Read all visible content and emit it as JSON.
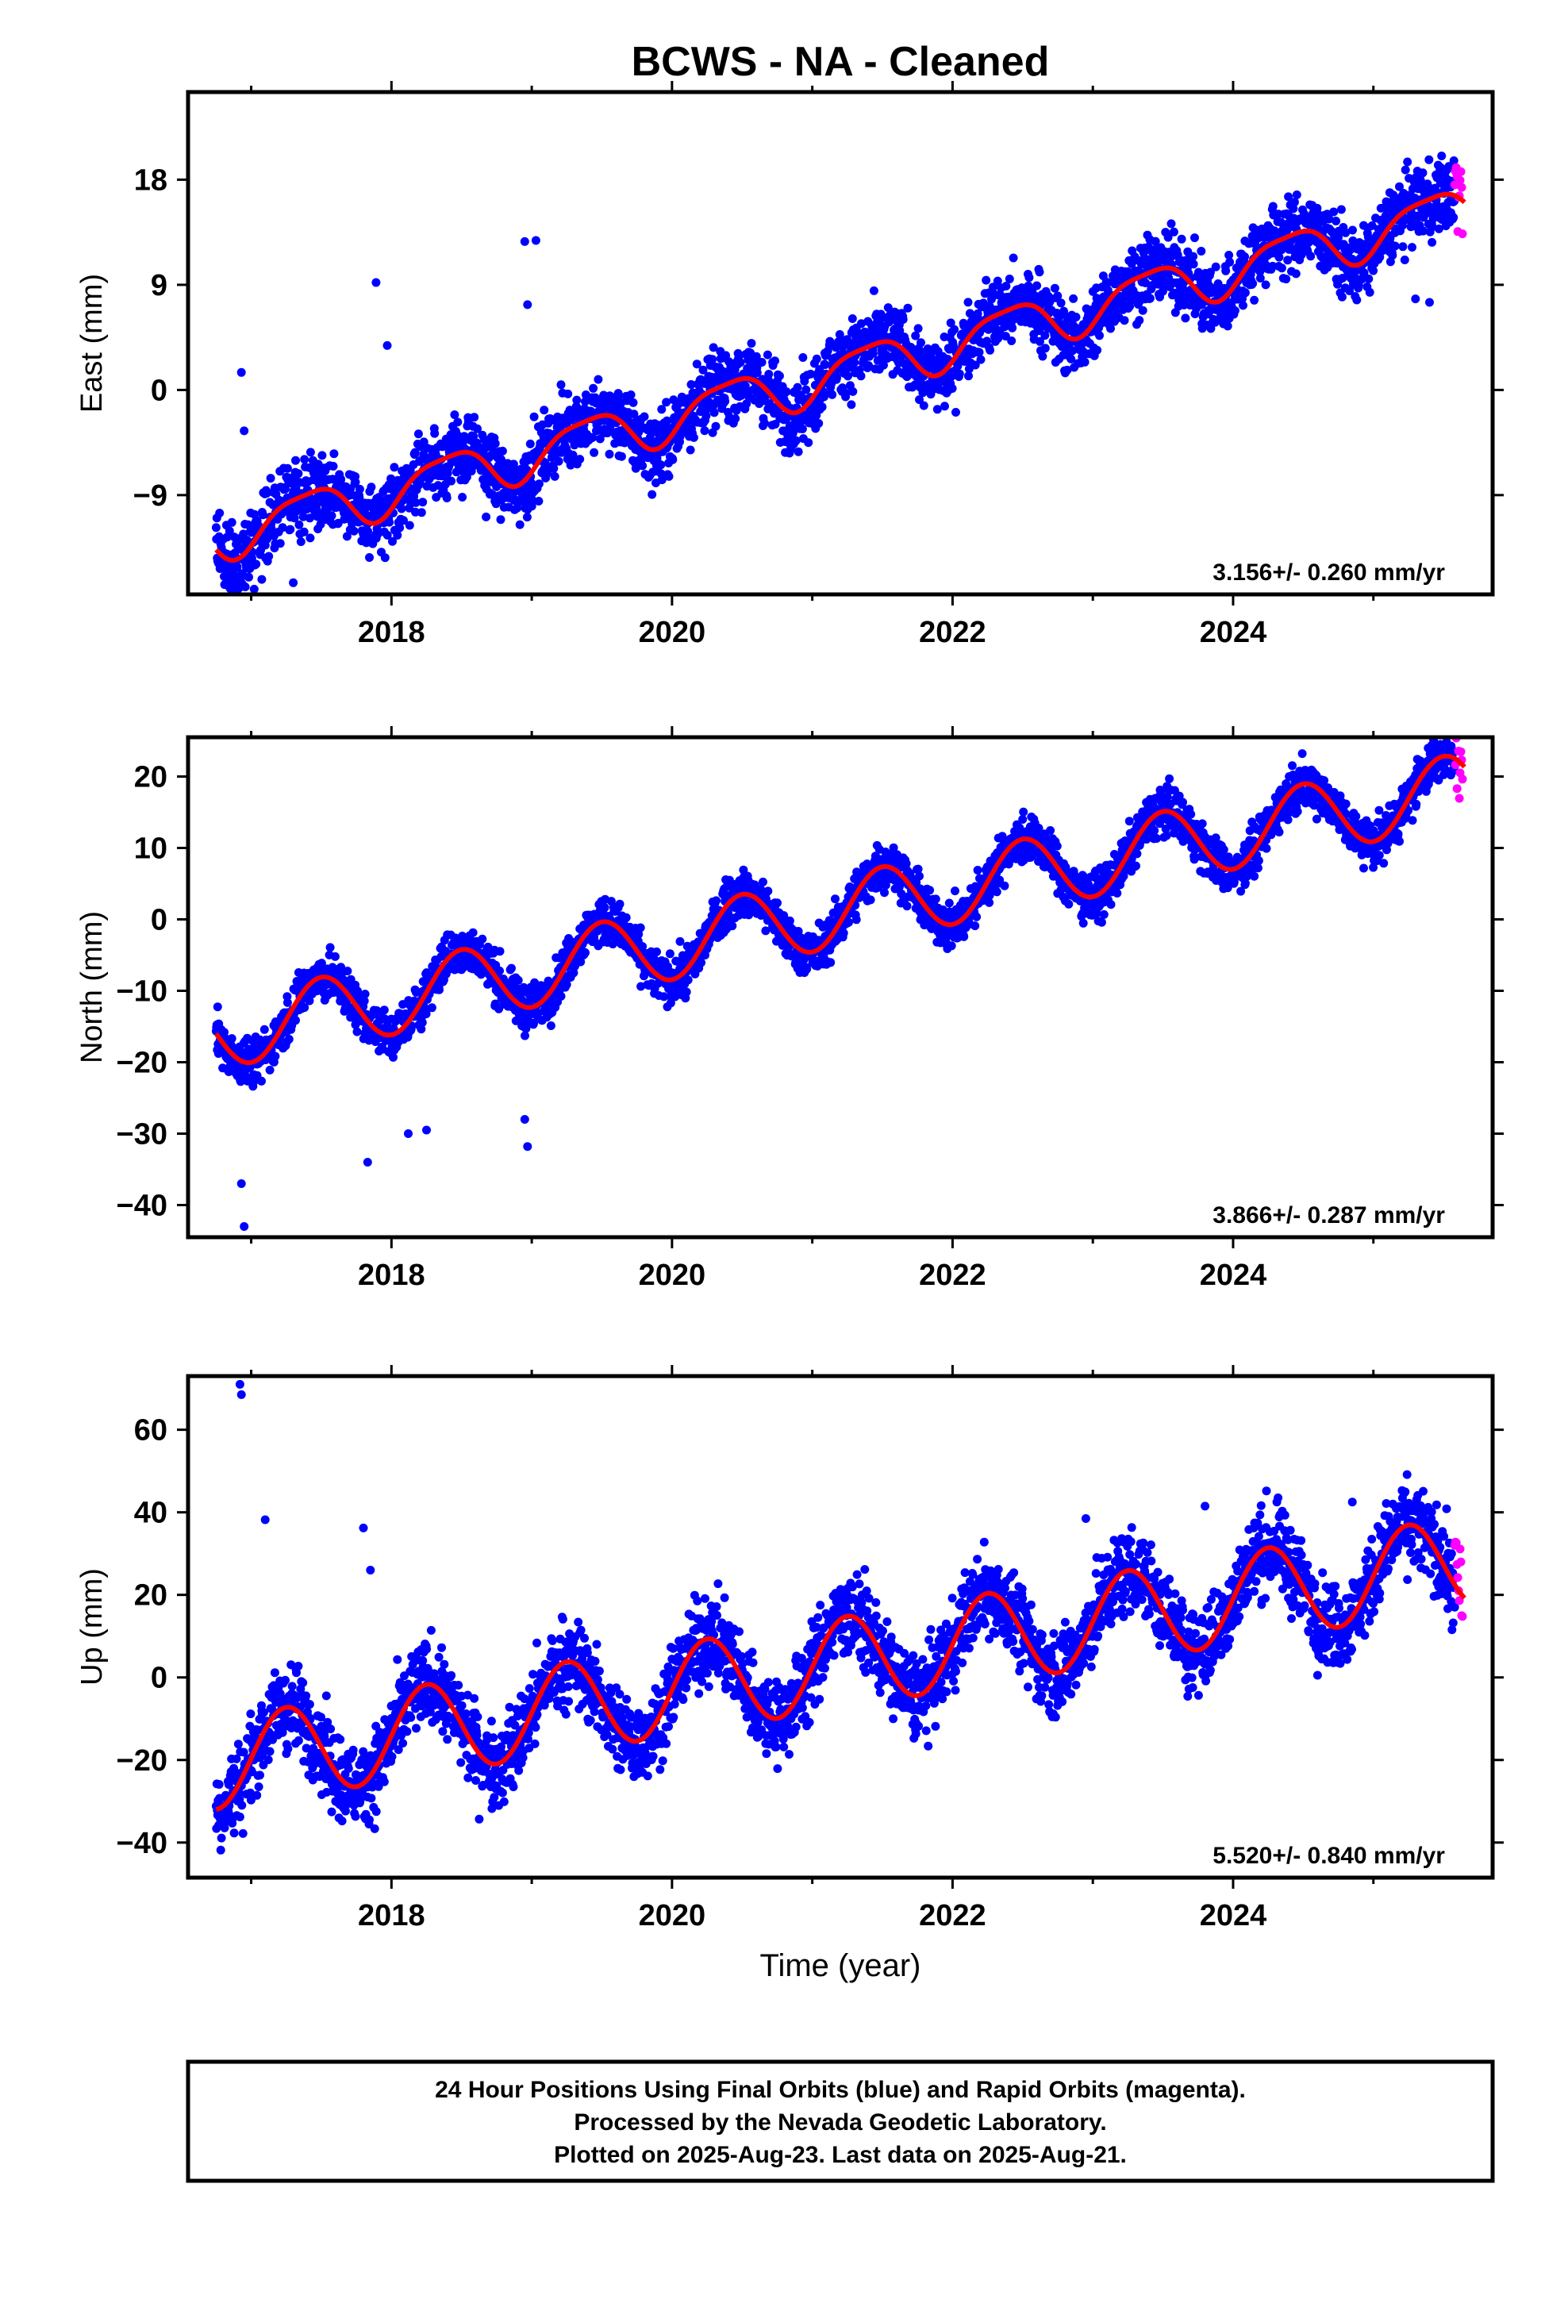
{
  "title": "BCWS  - NA - Cleaned",
  "xlabel": "Time (year)",
  "footer": [
    "24 Hour Positions Using Final Orbits (blue) and Rapid Orbits (magenta).",
    "Processed by the Nevada Geodetic Laboratory.",
    "Plotted on 2025-Aug-23. Last data on 2025-Aug-21."
  ],
  "colors": {
    "final": "#0000ff",
    "rapid": "#ff00ff",
    "model": "#ff0000",
    "axis": "#000000"
  },
  "chart_data": [
    {
      "type": "scatter",
      "ylabel": "East (mm)",
      "rate_text": "3.156+/- 0.260 mm/yr",
      "xlim": [
        2016.55,
        2025.85
      ],
      "ylim": [
        -17.5,
        25.5
      ],
      "xticks": [
        2018,
        2020,
        2022,
        2024
      ],
      "yticks": [
        -9,
        0,
        9,
        18
      ],
      "grid": false,
      "model": {
        "t0": 2016.75,
        "x_end": 2025.65,
        "offset": -12.5,
        "rate": 3.156,
        "annual_amp": 2.0,
        "annual_phase": 0.15,
        "semiannual_amp": 0.5,
        "semiannual_phase": 0.0
      },
      "final_range": [
        2016.75,
        2025.58
      ],
      "rapid_range": [
        2025.58,
        2025.64
      ],
      "scatter_sd": 1.5,
      "outliers": [
        [
          2016.93,
          1.5
        ],
        [
          2016.95,
          -3.5
        ],
        [
          2017.89,
          9.2
        ],
        [
          2017.97,
          3.8
        ],
        [
          2018.95,
          12.7
        ],
        [
          2019.03,
          12.8
        ],
        [
          2018.97,
          7.3
        ],
        [
          2017.3,
          -16.5
        ],
        [
          2025.3,
          7.8
        ],
        [
          2025.4,
          7.5
        ]
      ]
    },
    {
      "type": "scatter",
      "ylabel": "North (mm)",
      "rate_text": "3.866+/- 0.287 mm/yr",
      "xlim": [
        2016.55,
        2025.85
      ],
      "ylim": [
        -44.5,
        25.5
      ],
      "xticks": [
        2018,
        2020,
        2022,
        2024
      ],
      "yticks": [
        -40,
        -30,
        -20,
        -10,
        0,
        10,
        20
      ],
      "grid": false,
      "model": {
        "t0": 2016.75,
        "x_end": 2025.65,
        "offset": -16.0,
        "rate": 3.866,
        "annual_amp": 5.0,
        "annual_phase": 0.25,
        "semiannual_amp": 0.0,
        "semiannual_phase": 0.0
      },
      "final_range": [
        2016.75,
        2025.58
      ],
      "rapid_range": [
        2025.58,
        2025.64
      ],
      "scatter_sd": 1.6,
      "outliers": [
        [
          2016.93,
          -37
        ],
        [
          2016.95,
          -43
        ],
        [
          2017.83,
          -34
        ],
        [
          2018.12,
          -30
        ],
        [
          2018.25,
          -29.5
        ],
        [
          2018.97,
          -31.8
        ],
        [
          2018.95,
          -28
        ]
      ]
    },
    {
      "type": "scatter",
      "ylabel": "Up (mm)",
      "rate_text": "5.520+/- 0.840 mm/yr",
      "xlim": [
        2016.55,
        2025.85
      ],
      "ylim": [
        -48.5,
        73
      ],
      "xticks": [
        2018,
        2020,
        2022,
        2024
      ],
      "yticks": [
        -40,
        -20,
        0,
        20,
        40,
        60
      ],
      "grid": false,
      "model": {
        "t0": 2016.75,
        "x_end": 2025.65,
        "offset": -21.0,
        "rate": 5.52,
        "annual_amp": 11.0,
        "annual_phase": 0.0,
        "semiannual_amp": 0.0,
        "semiannual_phase": 0.0
      },
      "final_range": [
        2016.75,
        2025.58
      ],
      "rapid_range": [
        2025.58,
        2025.64
      ],
      "scatter_sd": 5.0,
      "outliers": [
        [
          2016.92,
          71
        ],
        [
          2016.93,
          68.5
        ],
        [
          2017.1,
          38.2
        ],
        [
          2017.8,
          36.2
        ],
        [
          2017.85,
          26
        ],
        [
          2024.85,
          42.5
        ],
        [
          2022.95,
          38.5
        ],
        [
          2023.8,
          41.5
        ]
      ]
    }
  ]
}
